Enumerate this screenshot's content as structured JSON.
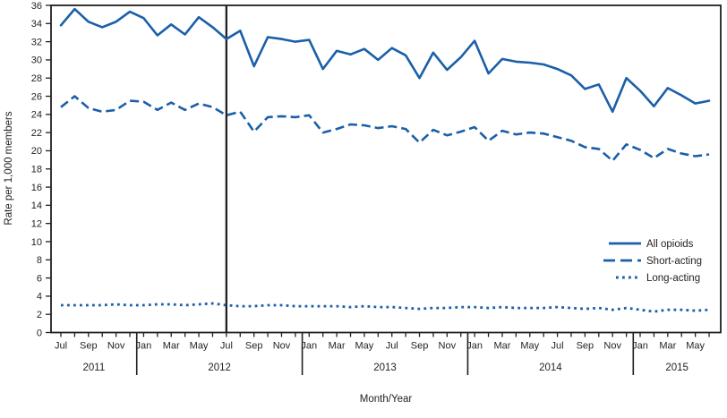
{
  "figure": {
    "kind": "line-chart",
    "colors": {
      "line_blue": "#1a5fa8",
      "axis_black": "#231f20"
    }
  },
  "chart_data": {
    "type": "line",
    "title": "",
    "xlabel": "Month/Year",
    "ylabel": "Rate per 1,000 members",
    "ylim": [
      0,
      36
    ],
    "y_ticks": [
      0,
      2,
      4,
      6,
      8,
      10,
      12,
      14,
      16,
      18,
      20,
      22,
      24,
      26,
      28,
      30,
      32,
      34,
      36
    ],
    "grid": false,
    "legend_position": "right-middle",
    "months": [
      "Jul 2011",
      "Aug 2011",
      "Sep 2011",
      "Oct 2011",
      "Nov 2011",
      "Dec 2011",
      "Jan 2012",
      "Feb 2012",
      "Mar 2012",
      "Apr 2012",
      "May 2012",
      "Jun 2012",
      "Jul 2012",
      "Aug 2012",
      "Sep 2012",
      "Oct 2012",
      "Nov 2012",
      "Dec 2012",
      "Jan 2013",
      "Feb 2013",
      "Mar 2013",
      "Apr 2013",
      "May 2013",
      "Jun 2013",
      "Jul 2013",
      "Aug 2013",
      "Sep 2013",
      "Oct 2013",
      "Nov 2013",
      "Dec 2013",
      "Jan 2014",
      "Feb 2014",
      "Mar 2014",
      "Apr 2014",
      "May 2014",
      "Jun 2014",
      "Jul 2014",
      "Aug 2014",
      "Sep 2014",
      "Oct 2014",
      "Nov 2014",
      "Dec 2014",
      "Jan 2015",
      "Feb 2015",
      "Mar 2015",
      "Apr 2015",
      "May 2015",
      "Jun 2015"
    ],
    "x_tick_label_every": 2,
    "years": [
      {
        "label": "2011",
        "span": [
          0,
          5
        ]
      },
      {
        "label": "2012",
        "span": [
          6,
          17
        ]
      },
      {
        "label": "2013",
        "span": [
          18,
          29
        ]
      },
      {
        "label": "2014",
        "span": [
          30,
          41
        ]
      },
      {
        "label": "2015",
        "span": [
          42,
          47
        ]
      }
    ],
    "reference_line": {
      "x_index": 12,
      "at_month": "Jul 2012"
    },
    "series": [
      {
        "name": "All opioids",
        "style": "solid",
        "values": [
          33.8,
          35.6,
          34.2,
          33.6,
          34.2,
          35.3,
          34.6,
          32.7,
          33.9,
          32.8,
          34.7,
          33.6,
          32.3,
          33.2,
          29.3,
          32.5,
          32.3,
          32.0,
          32.2,
          29.0,
          31.0,
          30.6,
          31.2,
          30.0,
          31.3,
          30.5,
          28.0,
          30.8,
          28.9,
          30.3,
          32.1,
          28.5,
          30.1,
          29.8,
          29.7,
          29.5,
          29.0,
          28.3,
          26.8,
          27.3,
          24.3,
          28.0,
          26.6,
          24.9,
          26.9,
          26.1,
          25.2,
          25.5
        ]
      },
      {
        "name": "Short-acting",
        "style": "dashed",
        "values": [
          24.8,
          26.0,
          24.7,
          24.3,
          24.5,
          25.5,
          25.4,
          24.5,
          25.3,
          24.5,
          25.2,
          24.8,
          23.9,
          24.3,
          22.1,
          23.7,
          23.8,
          23.7,
          23.9,
          22.0,
          22.4,
          22.9,
          22.8,
          22.5,
          22.7,
          22.4,
          20.9,
          22.3,
          21.7,
          22.1,
          22.6,
          21.1,
          22.2,
          21.8,
          22.0,
          21.9,
          21.5,
          21.1,
          20.4,
          20.2,
          18.9,
          20.7,
          20.1,
          19.2,
          20.2,
          19.7,
          19.4,
          19.6
        ]
      },
      {
        "name": "Long-acting",
        "style": "dotted",
        "values": [
          3.0,
          3.0,
          3.0,
          3.0,
          3.1,
          3.0,
          3.0,
          3.1,
          3.1,
          3.0,
          3.1,
          3.2,
          3.0,
          2.9,
          2.9,
          3.0,
          3.0,
          2.9,
          2.9,
          2.9,
          2.9,
          2.8,
          2.9,
          2.8,
          2.8,
          2.7,
          2.6,
          2.7,
          2.7,
          2.8,
          2.8,
          2.7,
          2.8,
          2.7,
          2.7,
          2.7,
          2.8,
          2.7,
          2.6,
          2.7,
          2.5,
          2.7,
          2.5,
          2.3,
          2.5,
          2.5,
          2.4,
          2.5
        ]
      }
    ]
  }
}
